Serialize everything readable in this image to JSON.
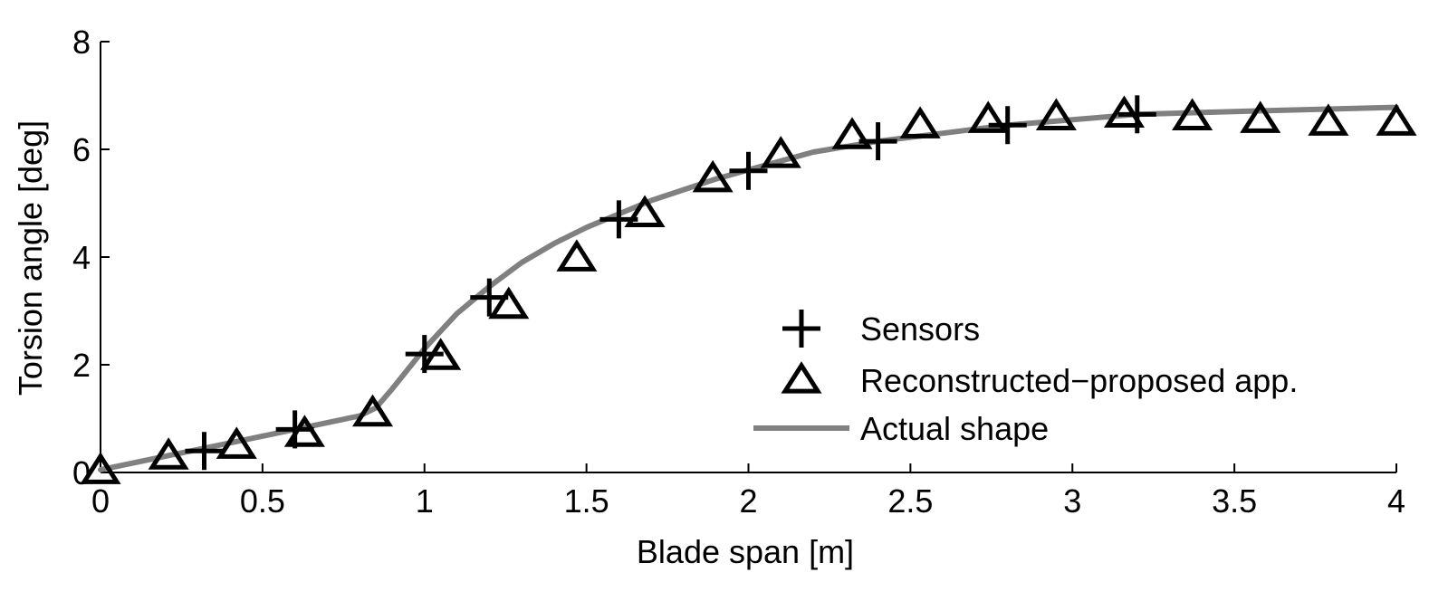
{
  "chart_data": {
    "type": "line",
    "title": "",
    "xlabel": "Blade span [m]",
    "ylabel": "Torsion angle [deg]",
    "xlim": [
      0,
      4
    ],
    "ylim": [
      0,
      8
    ],
    "xticks": [
      "0",
      "0.5",
      "1",
      "1.5",
      "2",
      "2.5",
      "3",
      "3.5",
      "4"
    ],
    "yticks": [
      "0",
      "2",
      "4",
      "6",
      "8"
    ],
    "grid": false,
    "legend_position": "center-right",
    "series": [
      {
        "name": "Sensors",
        "marker": "plus",
        "color": "#000000",
        "x": [
          0.32,
          0.6,
          1.0,
          1.2,
          1.6,
          2.0,
          2.4,
          2.8,
          3.2
        ],
        "y": [
          0.4,
          0.8,
          2.2,
          3.25,
          4.7,
          5.6,
          6.15,
          6.45,
          6.65
        ]
      },
      {
        "name": "Reconstructed−proposed app.",
        "marker": "triangle",
        "color": "#000000",
        "x": [
          0.0,
          0.21,
          0.42,
          0.63,
          0.84,
          1.05,
          1.26,
          1.47,
          1.68,
          1.89,
          2.1,
          2.32,
          2.53,
          2.74,
          2.95,
          3.16,
          3.37,
          3.58,
          3.79,
          4.0
        ],
        "y": [
          0.03,
          0.3,
          0.5,
          0.72,
          1.1,
          2.15,
          3.1,
          3.98,
          4.8,
          5.45,
          5.9,
          6.25,
          6.45,
          6.55,
          6.6,
          6.65,
          6.6,
          6.55,
          6.5,
          6.5
        ]
      },
      {
        "name": "Actual shape",
        "marker": "none",
        "color": "#808080",
        "x": [
          0.0,
          0.2,
          0.4,
          0.6,
          0.8,
          0.85,
          0.9,
          1.0,
          1.1,
          1.2,
          1.3,
          1.4,
          1.5,
          1.6,
          1.7,
          1.8,
          1.9,
          2.0,
          2.2,
          2.4,
          2.6,
          2.8,
          3.0,
          3.2,
          3.6,
          4.0
        ],
        "y": [
          0.05,
          0.3,
          0.55,
          0.8,
          1.05,
          1.2,
          1.55,
          2.3,
          2.95,
          3.45,
          3.9,
          4.25,
          4.55,
          4.8,
          5.05,
          5.25,
          5.45,
          5.62,
          5.95,
          6.15,
          6.3,
          6.45,
          6.55,
          6.65,
          6.72,
          6.78
        ]
      }
    ]
  }
}
